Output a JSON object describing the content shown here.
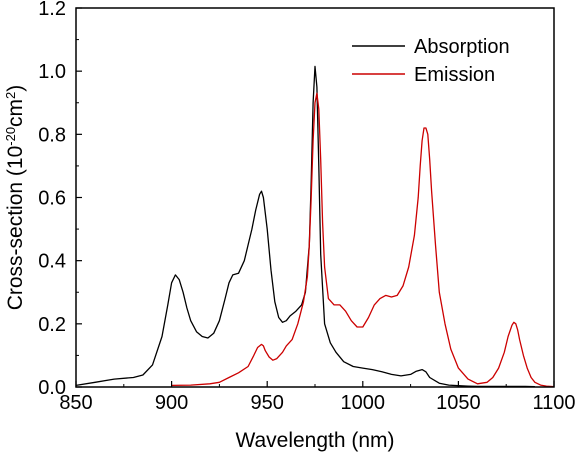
{
  "chart_data": {
    "type": "line",
    "xlabel": "Wavelength (nm)",
    "ylabel_prefix": "Cross-section (10",
    "ylabel_exp1": "-20",
    "ylabel_mid": "cm",
    "ylabel_exp2": "2",
    "ylabel_suffix": ")",
    "xlim": [
      850,
      1100
    ],
    "ylim": [
      0,
      1.2
    ],
    "xticks": [
      850,
      900,
      950,
      1000,
      1050,
      1100
    ],
    "xtick_labels": [
      "850",
      "900",
      "950",
      "1000",
      "1050",
      "1100"
    ],
    "yticks": [
      0,
      0.2,
      0.4,
      0.6,
      0.8,
      1.0,
      1.2
    ],
    "ytick_labels": [
      "0.0",
      "0.2",
      "0.4",
      "0.6",
      "0.8",
      "1.0",
      "1.2"
    ],
    "grid": false,
    "legend_position": "top-right",
    "series": [
      {
        "name": "Absorption",
        "color": "#000000",
        "x": [
          850,
          860,
          870,
          880,
          885,
          890,
          895,
          898,
          900,
          902,
          904,
          906,
          908,
          910,
          913,
          916,
          919,
          922,
          925,
          928,
          930,
          932,
          935,
          938,
          940,
          942,
          944,
          946,
          947,
          948,
          950,
          952,
          954,
          956,
          958,
          960,
          962,
          965,
          968,
          970,
          972,
          973,
          974,
          975,
          976,
          977,
          978,
          980,
          983,
          986,
          990,
          995,
          1000,
          1005,
          1010,
          1015,
          1020,
          1025,
          1028,
          1031,
          1033,
          1035,
          1040,
          1045,
          1050,
          1055,
          1060,
          1065,
          1070,
          1075,
          1080,
          1085,
          1090
        ],
        "y": [
          0.005,
          0.015,
          0.025,
          0.03,
          0.038,
          0.07,
          0.16,
          0.26,
          0.33,
          0.355,
          0.34,
          0.3,
          0.25,
          0.21,
          0.175,
          0.16,
          0.155,
          0.17,
          0.21,
          0.28,
          0.33,
          0.355,
          0.36,
          0.4,
          0.45,
          0.5,
          0.56,
          0.61,
          0.62,
          0.6,
          0.5,
          0.37,
          0.27,
          0.22,
          0.205,
          0.21,
          0.225,
          0.24,
          0.26,
          0.3,
          0.45,
          0.65,
          0.9,
          1.015,
          0.95,
          0.7,
          0.42,
          0.2,
          0.14,
          0.11,
          0.08,
          0.065,
          0.06,
          0.055,
          0.048,
          0.04,
          0.035,
          0.04,
          0.05,
          0.055,
          0.048,
          0.03,
          0.012,
          0.006,
          0.004,
          0.003,
          0.002,
          0.002,
          0.002,
          0.002,
          0.002,
          0.002,
          0.001
        ]
      },
      {
        "name": "Emission",
        "color": "#cc0000",
        "x": [
          900,
          910,
          920,
          925,
          930,
          935,
          940,
          943,
          945,
          947,
          948,
          949,
          951,
          953,
          955,
          958,
          960,
          963,
          966,
          969,
          971,
          972,
          973,
          974,
          975,
          976,
          977,
          978,
          979,
          980,
          982,
          985,
          988,
          991,
          994,
          997,
          1000,
          1003,
          1006,
          1009,
          1012,
          1015,
          1018,
          1021,
          1024,
          1027,
          1029,
          1030,
          1031,
          1032,
          1033,
          1034,
          1035,
          1036,
          1038,
          1040,
          1043,
          1046,
          1050,
          1055,
          1060,
          1065,
          1068,
          1071,
          1074,
          1076,
          1078,
          1079,
          1080,
          1081,
          1082,
          1084,
          1086,
          1088,
          1090,
          1093,
          1096,
          1100
        ],
        "y": [
          0.005,
          0.006,
          0.01,
          0.015,
          0.03,
          0.045,
          0.065,
          0.1,
          0.125,
          0.135,
          0.13,
          0.115,
          0.095,
          0.085,
          0.09,
          0.11,
          0.13,
          0.15,
          0.2,
          0.27,
          0.35,
          0.45,
          0.6,
          0.78,
          0.9,
          0.93,
          0.88,
          0.72,
          0.52,
          0.38,
          0.28,
          0.26,
          0.26,
          0.24,
          0.21,
          0.19,
          0.19,
          0.22,
          0.26,
          0.28,
          0.29,
          0.285,
          0.29,
          0.32,
          0.38,
          0.48,
          0.6,
          0.7,
          0.78,
          0.82,
          0.82,
          0.8,
          0.72,
          0.62,
          0.45,
          0.3,
          0.2,
          0.12,
          0.06,
          0.025,
          0.01,
          0.015,
          0.03,
          0.06,
          0.11,
          0.16,
          0.195,
          0.205,
          0.2,
          0.18,
          0.15,
          0.1,
          0.06,
          0.03,
          0.015,
          0.006,
          0.003,
          0.001
        ]
      }
    ]
  }
}
